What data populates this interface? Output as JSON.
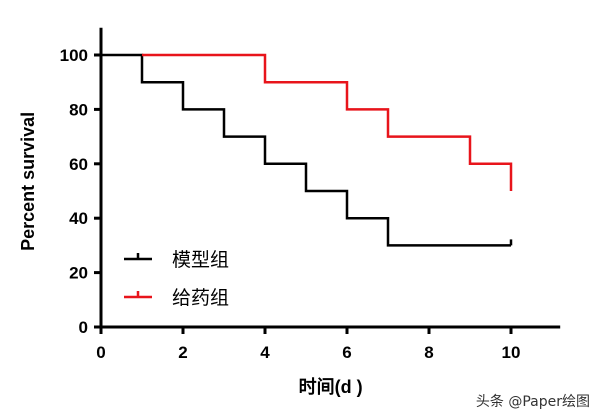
{
  "chart_data": {
    "type": "line",
    "step": true,
    "xlabel": "时间(d )",
    "ylabel": "Percent survival",
    "xlim": [
      0,
      11.2
    ],
    "ylim": [
      0,
      110
    ],
    "xticks": [
      0,
      2,
      4,
      6,
      8,
      10
    ],
    "yticks": [
      0,
      20,
      40,
      60,
      80,
      100
    ],
    "x_tick_labels": [
      "0",
      "2",
      "4",
      "6",
      "8",
      "10"
    ],
    "y_tick_labels": [
      "0",
      "20",
      "40",
      "60",
      "80",
      "100"
    ],
    "grid": false,
    "legend_position": "bottom-left",
    "series": [
      {
        "name": "模型组",
        "color": "#000000",
        "x": [
          0,
          1,
          2,
          3,
          4,
          5,
          6,
          7,
          10
        ],
        "y": [
          100,
          90,
          80,
          70,
          60,
          50,
          40,
          30,
          30
        ],
        "censored_end": {
          "x": 10,
          "y": 30
        }
      },
      {
        "name": "给药组",
        "color": "#e8141b",
        "x": [
          1,
          4,
          6,
          7,
          9,
          10
        ],
        "y": [
          100,
          90,
          80,
          70,
          60,
          50
        ],
        "censored_end": null
      }
    ]
  },
  "watermark": {
    "text": "头条 @Paper绘图"
  }
}
